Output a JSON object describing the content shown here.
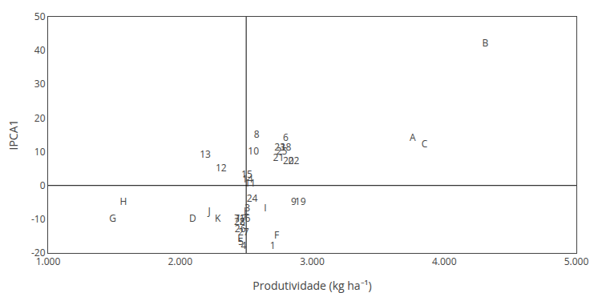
{
  "chart_data": {
    "type": "scatter",
    "marker": "none",
    "xlabel": "Produtividade (kg ha⁻¹)",
    "ylabel": "IPCA1",
    "xlim": [
      1000,
      5000
    ],
    "ylim": [
      -20,
      50
    ],
    "xticks": [
      {
        "value": 1000,
        "label": "1.000"
      },
      {
        "value": 2000,
        "label": "2.000"
      },
      {
        "value": 3000,
        "label": "3.000"
      },
      {
        "value": 4000,
        "label": "4.000"
      },
      {
        "value": 5000,
        "label": "5.000"
      }
    ],
    "yticks": [
      -20,
      -10,
      0,
      10,
      20,
      30,
      40,
      50
    ],
    "grid": false,
    "xline": 2500,
    "yline": 0,
    "labels": [
      "1",
      "2",
      "3",
      "4",
      "5",
      "6",
      "7",
      "8",
      "9",
      "10",
      "11",
      "12",
      "13",
      "14",
      "15",
      "16",
      "17",
      "18",
      "19",
      "20",
      "21",
      "22",
      "23",
      "24",
      "25",
      "26",
      "27",
      "28",
      "A",
      "B",
      "C",
      "D",
      "E",
      "F",
      "G",
      "H",
      "I",
      "J",
      "K",
      "L"
    ],
    "x": [
      2700,
      2470,
      2510,
      2480,
      2460,
      2800,
      2430,
      2580,
      2860,
      2555,
      2530,
      2310,
      2190,
      2510,
      2505,
      2490,
      2460,
      2800,
      2910,
      2820,
      2745,
      2860,
      2755,
      2545,
      2770,
      2455,
      2480,
      2450,
      3760,
      4310,
      3850,
      2095,
      2455,
      2730,
      1490,
      1570,
      2645,
      2220,
      2285,
      2500
    ],
    "values": [
      -18,
      -11,
      -7,
      -18,
      -17,
      14,
      -10,
      15,
      -5,
      10,
      0.5,
      5,
      9,
      1.5,
      3,
      -10,
      -10,
      11,
      -5,
      7,
      8,
      7,
      11,
      -4,
      10,
      -13,
      -14,
      -11,
      14,
      42,
      12,
      -10,
      -16,
      -15,
      -10,
      -5,
      -7,
      -8,
      -10,
      -8
    ]
  }
}
